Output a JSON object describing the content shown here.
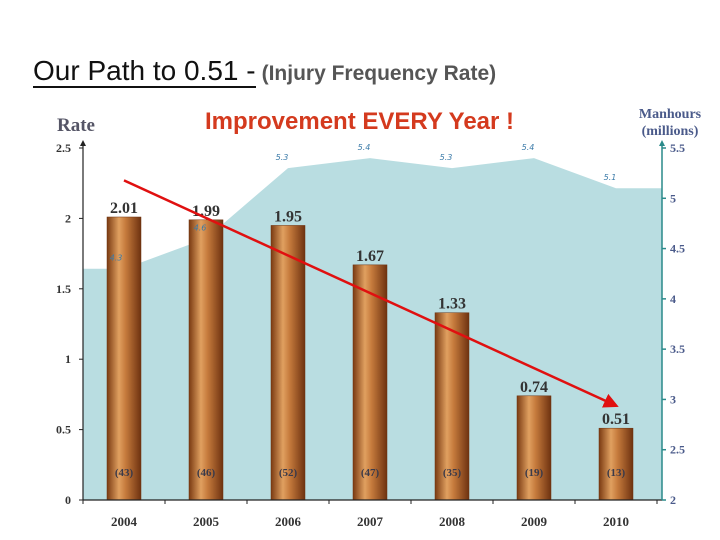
{
  "title": {
    "main": "Our Path to 0.51 - ",
    "sub": "(Injury Frequency Rate)"
  },
  "chart_data": {
    "type": "bar",
    "subtitle": "Improvement EVERY Year !",
    "ylabel": "Rate",
    "ylabel_right": "Manhours (millions)",
    "categories": [
      "2004",
      "2005",
      "2006",
      "2007",
      "2008",
      "2009",
      "2010"
    ],
    "series": [
      {
        "name": "Injury Frequency Rate",
        "type": "bar",
        "axis": "left",
        "values": [
          2.01,
          1.99,
          1.95,
          1.67,
          1.33,
          0.74,
          0.51
        ],
        "labels": [
          "2.01",
          "1.99",
          "1.95",
          "1.67",
          "1.33",
          "0.74",
          "0.51"
        ]
      },
      {
        "name": "Manhours (millions)",
        "type": "area",
        "axis": "right",
        "values": [
          4.3,
          4.6,
          5.3,
          5.4,
          5.3,
          5.4,
          5.1
        ],
        "labels": [
          "4.3",
          "4.6",
          "5.3",
          "5.4",
          "5.3",
          "5.4",
          "5.1"
        ]
      }
    ],
    "injury_counts": [
      "(43)",
      "(46)",
      "(52)",
      "(47)",
      "(35)",
      "(19)",
      "(13)"
    ],
    "ylim": [
      0,
      2.5
    ],
    "yticks": [
      "0",
      "0.5",
      "1",
      "1.5",
      "2",
      "2.5"
    ],
    "ylim_right": [
      2,
      5.5
    ],
    "yticks_right": [
      "2",
      "2.5",
      "3",
      "3.5",
      "4",
      "4.5",
      "5",
      "5.5"
    ],
    "trend_arrow": {
      "from": [
        2004,
        2.27
      ],
      "to": [
        2010,
        0.67
      ]
    },
    "colors": {
      "bar": "#b86a33",
      "area": "#b9dde1",
      "arrow": "#e01010",
      "left_axis": "#222222",
      "right_axis": "#2a8a8a",
      "subtitle": "#d43a1e"
    }
  }
}
